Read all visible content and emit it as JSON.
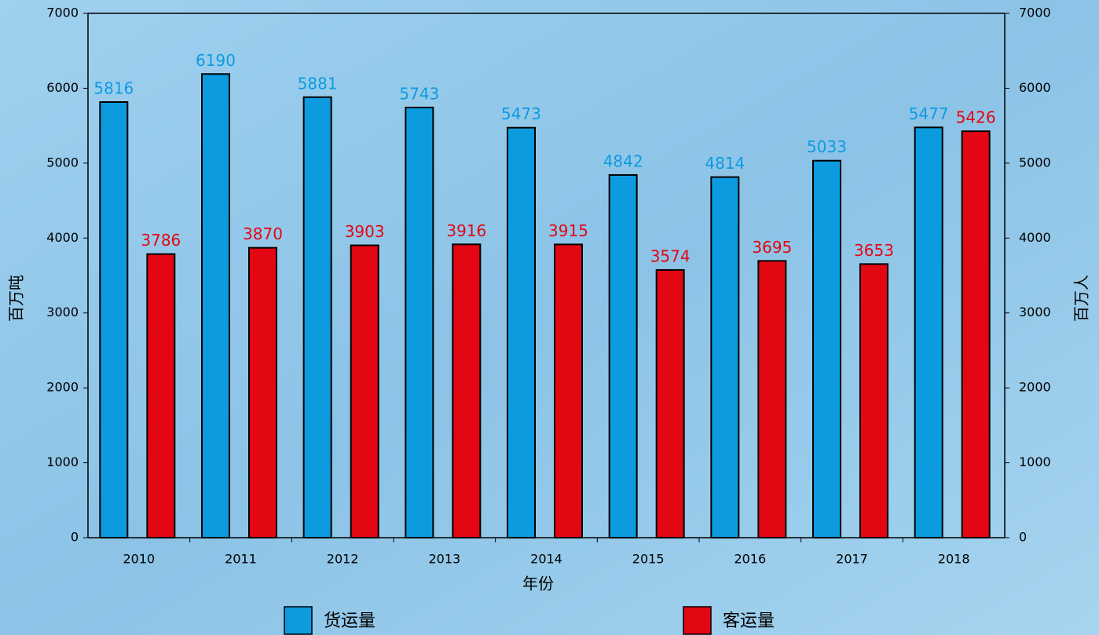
{
  "chart_data": {
    "type": "bar",
    "categories": [
      "2010",
      "2011",
      "2012",
      "2013",
      "2014",
      "2015",
      "2016",
      "2017",
      "2018"
    ],
    "series": [
      {
        "name": "货运量",
        "color": "#0d9be0",
        "values": [
          5816,
          6190,
          5881,
          5743,
          5473,
          4842,
          4814,
          5033,
          5477
        ]
      },
      {
        "name": "客运量",
        "color": "#e30613",
        "axis": "y2",
        "values": [
          3786,
          3870,
          3903,
          3916,
          3915,
          3574,
          3695,
          3653,
          5426
        ]
      }
    ],
    "x_label": "年份",
    "y_label": "百万吨",
    "y2_label": "百万人",
    "ylim": [
      0,
      7000
    ],
    "yticks": [
      0,
      1000,
      2000,
      3000,
      4000,
      5000,
      6000,
      7000
    ],
    "y2lim": [
      0,
      7000
    ],
    "y2ticks": [
      0,
      1000,
      2000,
      3000,
      4000,
      5000,
      6000,
      7000
    ],
    "legend": "bottom"
  }
}
